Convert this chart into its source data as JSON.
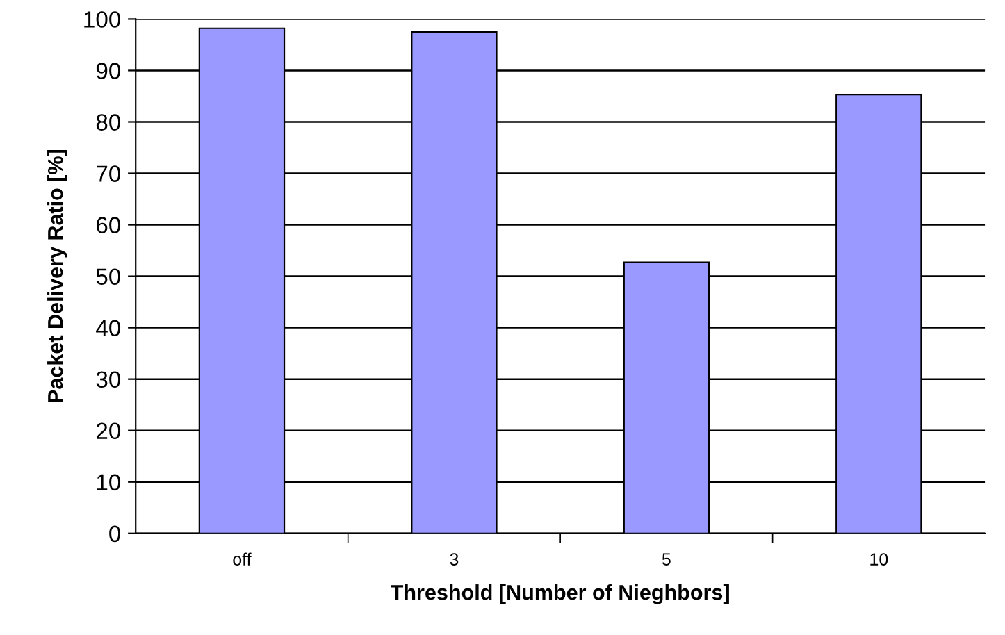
{
  "chart_data": {
    "type": "bar",
    "xlabel": "Threshold [Number of Nieghbors]",
    "ylabel": "Packet Delivery Ratio [%]",
    "categories": [
      "off",
      "3",
      "5",
      "10"
    ],
    "values": [
      98.2,
      97.5,
      52.7,
      85.3
    ],
    "color": "#9999ff",
    "ylim": [
      0,
      100
    ],
    "yticks": [
      0,
      10,
      20,
      30,
      40,
      50,
      60,
      70,
      80,
      90,
      100
    ],
    "grid": "y"
  }
}
